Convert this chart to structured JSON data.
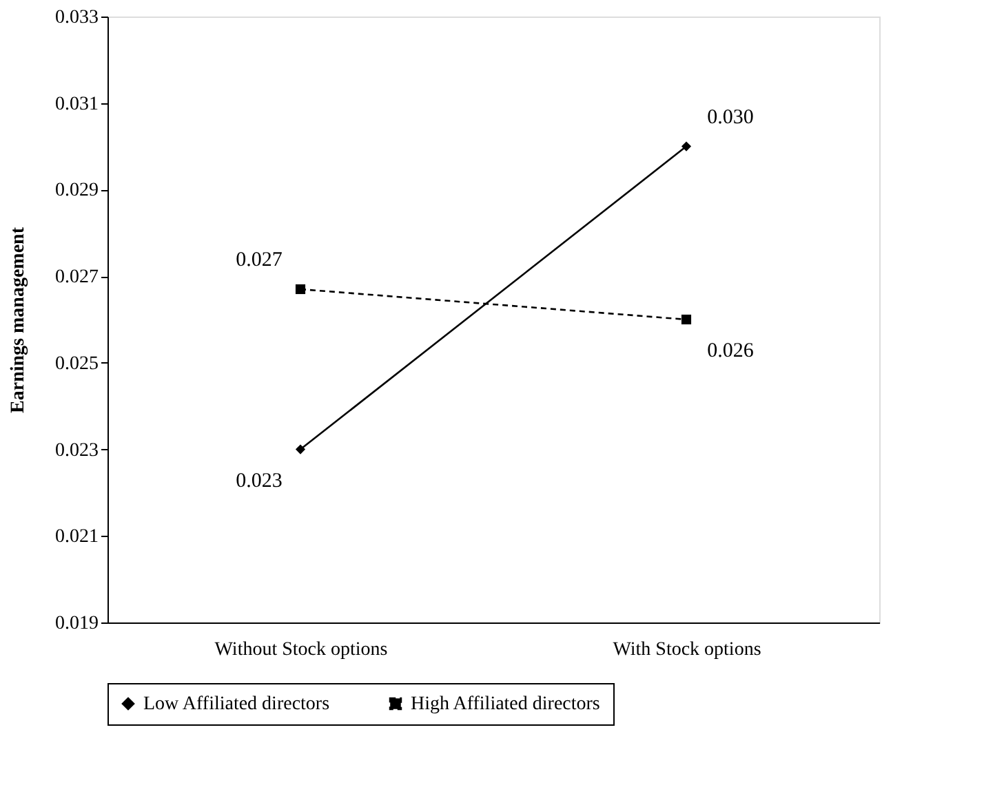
{
  "chart_data": {
    "type": "line",
    "ylabel": "Earnings management",
    "categories": [
      "Without Stock options",
      "With Stock options"
    ],
    "series": [
      {
        "name": "Low Affiliated directors",
        "color": "#000000",
        "values": [
          0.023,
          0.03
        ],
        "value_labels": [
          "0.023",
          "0.030"
        ],
        "marker": "diamond",
        "line_style": "solid"
      },
      {
        "name": "High Affiliated directors",
        "color": "#000000",
        "values": [
          0.0267,
          0.026
        ],
        "value_labels": [
          "0.027",
          "0.026"
        ],
        "marker": "square",
        "line_style": "dashed"
      }
    ],
    "ylim": [
      0.019,
      0.033
    ],
    "yticks": [
      0.019,
      0.021,
      0.023,
      0.025,
      0.027,
      0.029,
      0.031,
      0.033
    ],
    "grid": false,
    "legend": "bottom"
  }
}
